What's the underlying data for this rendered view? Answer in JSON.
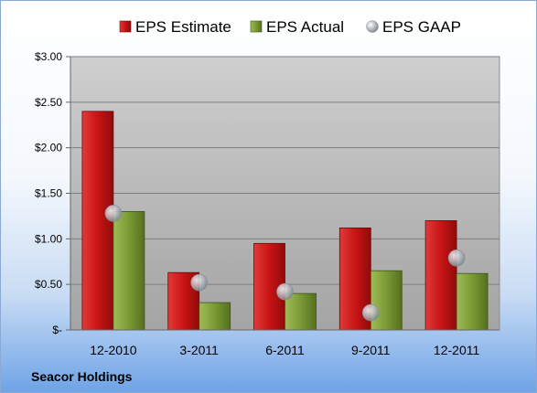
{
  "company": "Seacor Holdings",
  "chart_data": {
    "type": "bar",
    "categories": [
      "12-2010",
      "3-2011",
      "6-2011",
      "9-2011",
      "12-2011"
    ],
    "series": [
      {
        "name": "EPS Estimate",
        "kind": "bar",
        "color": "#cc1f1f",
        "values": [
          2.4,
          0.63,
          0.95,
          1.12,
          1.2
        ]
      },
      {
        "name": "EPS Actual",
        "kind": "bar",
        "color": "#7f9e3a",
        "values": [
          1.3,
          0.3,
          0.4,
          0.65,
          0.62
        ]
      },
      {
        "name": "EPS GAAP",
        "kind": "marker",
        "color": "#b9bec6",
        "values": [
          1.28,
          0.52,
          0.42,
          0.19,
          0.79
        ]
      }
    ],
    "ylim": [
      0,
      3.0
    ],
    "yticks": [
      {
        "value": 0,
        "label": "$-"
      },
      {
        "value": 0.5,
        "label": "$0.50"
      },
      {
        "value": 1.0,
        "label": "$1.00"
      },
      {
        "value": 1.5,
        "label": "$1.50"
      },
      {
        "value": 2.0,
        "label": "$2.00"
      },
      {
        "value": 2.5,
        "label": "$2.50"
      },
      {
        "value": 3.0,
        "label": "$3.00"
      }
    ],
    "grid": true,
    "legend": "top"
  }
}
